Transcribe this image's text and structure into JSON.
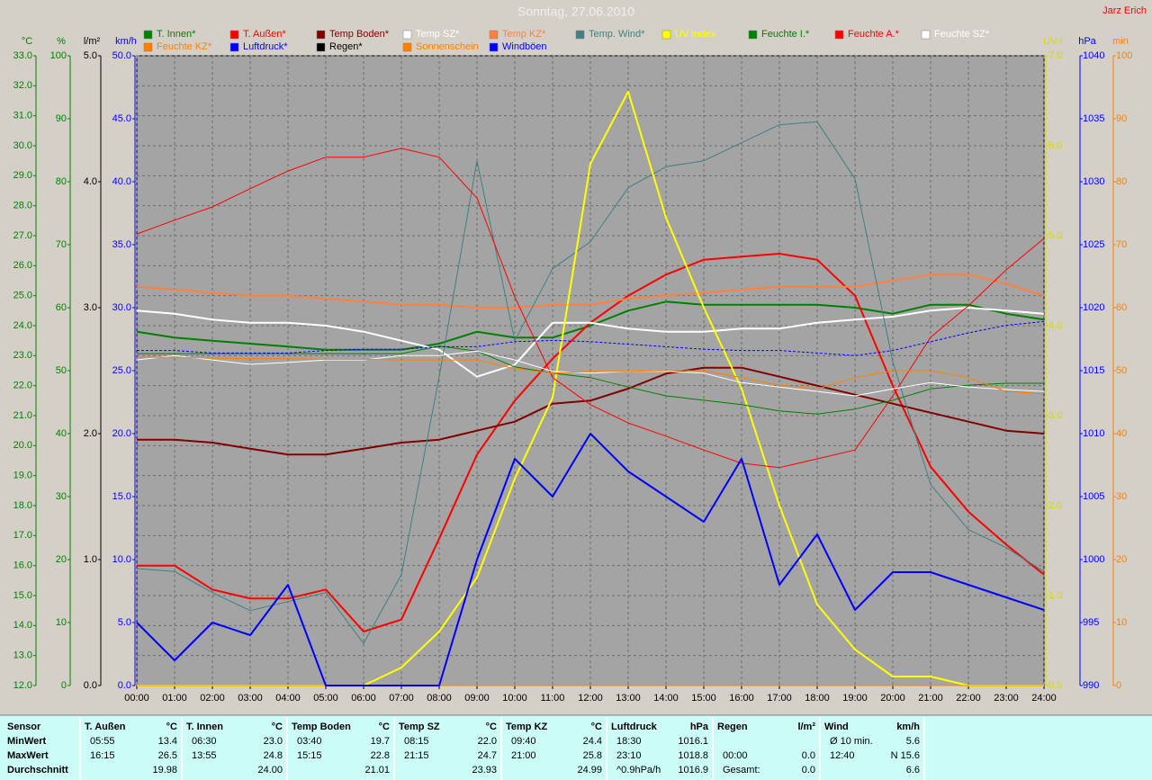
{
  "chart_data": {
    "type": "line",
    "title": "Sonntag, 27.06.2010",
    "author": "Jarz Erich",
    "grid": true,
    "x": [
      0,
      1,
      2,
      3,
      4,
      5,
      6,
      7,
      8,
      9,
      10,
      11,
      12,
      13,
      14,
      15,
      16,
      17,
      18,
      19,
      20,
      21,
      22,
      23,
      24
    ],
    "xlim": [
      0,
      24
    ],
    "xticks": [
      {
        "value": 0,
        "label": "00:00"
      },
      {
        "value": 1,
        "label": "01:00"
      },
      {
        "value": 2,
        "label": "02:00"
      },
      {
        "value": 3,
        "label": "03:00"
      },
      {
        "value": 4,
        "label": "04:00"
      },
      {
        "value": 5,
        "label": "05:00"
      },
      {
        "value": 6,
        "label": "06:00"
      },
      {
        "value": 7,
        "label": "07:00"
      },
      {
        "value": 8,
        "label": "08:00"
      },
      {
        "value": 9,
        "label": "09:00"
      },
      {
        "value": 10,
        "label": "10:00"
      },
      {
        "value": 11,
        "label": "11:00"
      },
      {
        "value": 12,
        "label": "12:00"
      },
      {
        "value": 13,
        "label": "13:00"
      },
      {
        "value": 14,
        "label": "14:00"
      },
      {
        "value": 15,
        "label": "15:00"
      },
      {
        "value": 16,
        "label": "16:00"
      },
      {
        "value": 17,
        "label": "17:00"
      },
      {
        "value": 18,
        "label": "18:00"
      },
      {
        "value": 19,
        "label": "19:00"
      },
      {
        "value": 20,
        "label": "20:00"
      },
      {
        "value": 21,
        "label": "21:00"
      },
      {
        "value": 22,
        "label": "22:00"
      },
      {
        "value": 23,
        "label": "23:00"
      },
      {
        "value": 24,
        "label": "24:00"
      }
    ],
    "y_axes": [
      {
        "label": "°C",
        "side": "left",
        "color": "#008000",
        "ylim": [
          12,
          33
        ],
        "yticks": [
          {
            "value": 12,
            "label": "12.0"
          },
          {
            "value": 13,
            "label": "13.0"
          },
          {
            "value": 14,
            "label": "14.0"
          },
          {
            "value": 15,
            "label": "15.0"
          },
          {
            "value": 16,
            "label": "16.0"
          },
          {
            "value": 17,
            "label": "17.0"
          },
          {
            "value": 18,
            "label": "18.0"
          },
          {
            "value": 19,
            "label": "19.0"
          },
          {
            "value": 20,
            "label": "20.0"
          },
          {
            "value": 21,
            "label": "21.0"
          },
          {
            "value": 22,
            "label": "22.0"
          },
          {
            "value": 23,
            "label": "23.0"
          },
          {
            "value": 24,
            "label": "24.0"
          },
          {
            "value": 25,
            "label": "25.0"
          },
          {
            "value": 26,
            "label": "26.0"
          },
          {
            "value": 27,
            "label": "27.0"
          },
          {
            "value": 28,
            "label": "28.0"
          },
          {
            "value": 29,
            "label": "29.0"
          },
          {
            "value": 30,
            "label": "30.0"
          },
          {
            "value": 31,
            "label": "31.0"
          },
          {
            "value": 32,
            "label": "32.0"
          },
          {
            "value": 33,
            "label": "33.0"
          }
        ]
      },
      {
        "label": "%",
        "side": "left",
        "color": "#008000",
        "ylim": [
          0,
          100
        ],
        "yticks": [
          0,
          10,
          20,
          30,
          40,
          50,
          60,
          70,
          80,
          90,
          100
        ]
      },
      {
        "label": "l/m²",
        "side": "left",
        "color": "#000000",
        "ylim": [
          0,
          5
        ],
        "yticks": [
          {
            "value": 0,
            "label": "0.0"
          },
          {
            "value": 1,
            "label": "1.0"
          },
          {
            "value": 2,
            "label": "2.0"
          },
          {
            "value": 3,
            "label": "3.0"
          },
          {
            "value": 4,
            "label": "4.0"
          },
          {
            "value": 5,
            "label": "5.0"
          }
        ]
      },
      {
        "label": "km/h",
        "side": "left",
        "color": "#0000ff",
        "ylim": [
          0,
          50
        ],
        "yticks": [
          {
            "value": 0,
            "label": "0.0"
          },
          {
            "value": 5,
            "label": "5.0"
          },
          {
            "value": 10,
            "label": "10.0"
          },
          {
            "value": 15,
            "label": "15.0"
          },
          {
            "value": 20,
            "label": "20.0"
          },
          {
            "value": 25,
            "label": "25.0"
          },
          {
            "value": 30,
            "label": "30.0"
          },
          {
            "value": 35,
            "label": "35.0"
          },
          {
            "value": 40,
            "label": "40.0"
          },
          {
            "value": 45,
            "label": "45.0"
          },
          {
            "value": 50,
            "label": "50.0"
          }
        ]
      },
      {
        "label": "UV-I",
        "side": "right",
        "color": "#d8d800",
        "ylim": [
          0,
          7
        ],
        "yticks": [
          {
            "value": 0,
            "label": "0.0"
          },
          {
            "value": 1,
            "label": "1.0"
          },
          {
            "value": 2,
            "label": "2.0"
          },
          {
            "value": 3,
            "label": "3.0"
          },
          {
            "value": 4,
            "label": "4.0"
          },
          {
            "value": 5,
            "label": "5.0"
          },
          {
            "value": 6,
            "label": "6.0"
          },
          {
            "value": 7,
            "label": "7.0"
          }
        ]
      },
      {
        "label": "hPa",
        "side": "right",
        "color": "#0000ff",
        "ylim": [
          990,
          1040
        ],
        "yticks": [
          990,
          995,
          1000,
          1005,
          1010,
          1015,
          1020,
          1025,
          1030,
          1035,
          1040
        ]
      },
      {
        "label": "min",
        "side": "right",
        "color": "#ff8000",
        "ylim": [
          0,
          100
        ],
        "yticks": [
          0,
          10,
          20,
          30,
          40,
          50,
          60,
          70,
          80,
          90,
          100
        ]
      }
    ],
    "series": [
      {
        "name": "T. Innen*",
        "color": "#008000",
        "axis": 0,
        "style": "thick",
        "values": [
          23.8,
          23.6,
          23.5,
          23.4,
          23.3,
          23.2,
          23.2,
          23.2,
          23.4,
          23.8,
          23.6,
          23.6,
          24.0,
          24.5,
          24.8,
          24.7,
          24.7,
          24.7,
          24.7,
          24.6,
          24.4,
          24.7,
          24.7,
          24.4,
          24.2
        ]
      },
      {
        "name": "T. Außen*",
        "color": "#ff0000",
        "axis": 0,
        "style": "thick",
        "values": [
          16.0,
          16.0,
          15.2,
          14.9,
          14.9,
          15.2,
          13.8,
          14.2,
          16.9,
          19.7,
          21.5,
          22.9,
          24.1,
          25.0,
          25.7,
          26.2,
          26.3,
          26.4,
          26.2,
          25.0,
          22.0,
          19.3,
          17.8,
          16.7,
          15.7
        ]
      },
      {
        "name": "Temp Boden*",
        "color": "#800000",
        "axis": 0,
        "style": "thick",
        "values": [
          20.2,
          20.2,
          20.1,
          19.9,
          19.7,
          19.7,
          19.9,
          20.1,
          20.2,
          20.5,
          20.8,
          21.4,
          21.5,
          21.9,
          22.4,
          22.6,
          22.6,
          22.3,
          22.0,
          21.7,
          21.4,
          21.1,
          20.8,
          20.5,
          20.4
        ]
      },
      {
        "name": "Temp SZ*",
        "color": "#ffffff",
        "axis": 0,
        "style": "thick",
        "values": [
          24.5,
          24.4,
          24.2,
          24.1,
          24.1,
          24.0,
          23.8,
          23.5,
          23.2,
          22.3,
          22.7,
          24.1,
          24.1,
          23.9,
          23.8,
          23.8,
          23.9,
          23.9,
          24.1,
          24.2,
          24.3,
          24.5,
          24.6,
          24.5,
          24.4
        ]
      },
      {
        "name": "Temp KZ*",
        "color": "#ff8040",
        "axis": 0,
        "style": "thick",
        "values": [
          25.3,
          25.2,
          25.1,
          25.0,
          25.0,
          24.9,
          24.8,
          24.7,
          24.7,
          24.6,
          24.6,
          24.7,
          24.7,
          24.9,
          25.0,
          25.1,
          25.2,
          25.3,
          25.3,
          25.3,
          25.5,
          25.7,
          25.7,
          25.4,
          25.0
        ]
      },
      {
        "name": "Temp. Wind*",
        "color": "#408080",
        "axis": 0,
        "style": "thin",
        "values": [
          15.9,
          15.8,
          15.1,
          14.5,
          14.8,
          15.1,
          13.4,
          15.7,
          22.3,
          29.5,
          23.5,
          25.9,
          26.8,
          28.6,
          29.3,
          29.5,
          30.1,
          30.7,
          30.8,
          28.9,
          22.8,
          18.7,
          17.2,
          16.6,
          15.8
        ]
      },
      {
        "name": "UV Index",
        "color": "#ffff00",
        "axis": 4,
        "style": "thick",
        "values": [
          0,
          0,
          0,
          0,
          0,
          0,
          0,
          0.2,
          0.6,
          1.2,
          2.3,
          3.2,
          5.8,
          6.6,
          5.2,
          4.2,
          3.3,
          2.0,
          0.9,
          0.4,
          0.1,
          0.1,
          0,
          0,
          0
        ]
      },
      {
        "name": "Feuchte I.*",
        "color": "#008000",
        "axis": 1,
        "style": "thin",
        "values": [
          52.7,
          52.7,
          52.7,
          52.7,
          52.7,
          52.7,
          52.7,
          52.7,
          53.9,
          53.1,
          50.6,
          49.6,
          48.9,
          47.4,
          46.0,
          45.3,
          44.6,
          43.6,
          43.1,
          43.9,
          45.3,
          47.1,
          47.7,
          48.0,
          48.0
        ]
      },
      {
        "name": "Feuchte A.*",
        "color": "#ff0000",
        "axis": 1,
        "style": "thin",
        "values": [
          71.7,
          73.9,
          76.0,
          78.9,
          81.7,
          83.9,
          83.9,
          85.3,
          83.9,
          77.4,
          61.7,
          48.9,
          44.6,
          41.7,
          39.6,
          37.4,
          35.3,
          34.6,
          36.0,
          37.4,
          46.0,
          55.3,
          60.3,
          66.0,
          71.0
        ]
      },
      {
        "name": "Feuchte SZ*",
        "color": "#ffffff",
        "axis": 1,
        "style": "thin",
        "values": [
          51.7,
          52.4,
          51.7,
          51.0,
          51.3,
          51.7,
          51.7,
          52.4,
          52.4,
          53.1,
          51.7,
          49.9,
          49.6,
          49.9,
          49.9,
          49.6,
          48.1,
          47.4,
          46.7,
          46.0,
          47.1,
          48.1,
          47.4,
          47.0,
          46.7
        ]
      },
      {
        "name": "Feuchte KZ*",
        "color": "#ff8000",
        "axis": 1,
        "style": "thin",
        "values": [
          52.1,
          52.1,
          52.0,
          51.9,
          51.9,
          51.8,
          51.8,
          51.7,
          51.7,
          51.7,
          50.3,
          49.6,
          49.9,
          49.9,
          50.0,
          50.0,
          48.9,
          47.7,
          47.1,
          48.9,
          50.0,
          50.0,
          48.9,
          46.7,
          46.3
        ]
      },
      {
        "name": "Luftdruck*",
        "color": "#0000ff",
        "axis": 5,
        "style": "dashed",
        "values": [
          1016.6,
          1016.6,
          1016.4,
          1016.4,
          1016.4,
          1016.6,
          1016.7,
          1016.7,
          1016.9,
          1016.9,
          1017.3,
          1017.4,
          1017.3,
          1017.1,
          1016.9,
          1016.7,
          1016.6,
          1016.6,
          1016.4,
          1016.2,
          1016.6,
          1017.3,
          1018.0,
          1018.6,
          1018.9
        ]
      },
      {
        "name": "Regen*",
        "color": "#000000",
        "axis": 2,
        "style": "thin",
        "values": [
          0,
          0,
          0,
          0,
          0,
          0,
          0,
          0,
          0,
          0,
          0,
          0,
          0,
          0,
          0,
          0,
          0,
          0,
          0,
          0,
          0,
          0,
          0,
          0,
          0
        ]
      },
      {
        "name": "Sonnenschein",
        "color": "#ff8000",
        "axis": 6,
        "style": "thin",
        "values": [
          0,
          0,
          0,
          0,
          0,
          0,
          0,
          0,
          0,
          0,
          0,
          0,
          0,
          0,
          0,
          0,
          0,
          0,
          0,
          0,
          0,
          0,
          0,
          0,
          0
        ]
      },
      {
        "name": "Windböen",
        "color": "#0000ff",
        "axis": 3,
        "style": "thick",
        "values": [
          5,
          2,
          5,
          4,
          8,
          0,
          0,
          0,
          0,
          10,
          18,
          15,
          20,
          17,
          15,
          13,
          18,
          8,
          12,
          6,
          9,
          9,
          8,
          7,
          6
        ]
      }
    ]
  },
  "table": {
    "row_labels": [
      "Sensor",
      "MinWert",
      "MaxWert",
      "Durchschnitt"
    ],
    "groups": [
      {
        "name": "T. Außen",
        "unit": "°C",
        "rows": [
          [
            "05:55",
            "13.4"
          ],
          [
            "16:15",
            "26.5"
          ],
          [
            null,
            "19.98"
          ]
        ]
      },
      {
        "name": "T. Innen",
        "unit": "°C",
        "rows": [
          [
            "06:30",
            "23.0"
          ],
          [
            "13:55",
            "24.8"
          ],
          [
            null,
            "24.00"
          ]
        ]
      },
      {
        "name": "Temp Boden",
        "unit": "°C",
        "rows": [
          [
            "03:40",
            "19.7"
          ],
          [
            "15:15",
            "22.8"
          ],
          [
            null,
            "21.01"
          ]
        ]
      },
      {
        "name": "Temp SZ",
        "unit": "°C",
        "rows": [
          [
            "08:15",
            "22.0"
          ],
          [
            "21:15",
            "24.7"
          ],
          [
            null,
            "23.93"
          ]
        ]
      },
      {
        "name": "Temp KZ",
        "unit": "°C",
        "rows": [
          [
            "09:40",
            "24.4"
          ],
          [
            "21:00",
            "25.8"
          ],
          [
            null,
            "24.99"
          ]
        ]
      },
      {
        "name": "Luftdruck",
        "unit": "hPa",
        "rows": [
          [
            "18:30",
            "1016.1"
          ],
          [
            "23:10",
            "1018.8"
          ],
          [
            "^0.9hPa/h",
            "1016.9"
          ]
        ]
      },
      {
        "name": "Regen",
        "unit": "l/m²",
        "rows": [
          [
            null,
            null
          ],
          [
            "00:00",
            "0.0"
          ],
          [
            "Gesamt:",
            "0.0"
          ]
        ]
      },
      {
        "name": "Wind",
        "unit": "km/h",
        "rows": [
          [
            "Ø 10 min.",
            "5.6"
          ],
          [
            "12:40",
            "N 15.6"
          ],
          [
            null,
            "6.6"
          ]
        ]
      }
    ]
  }
}
